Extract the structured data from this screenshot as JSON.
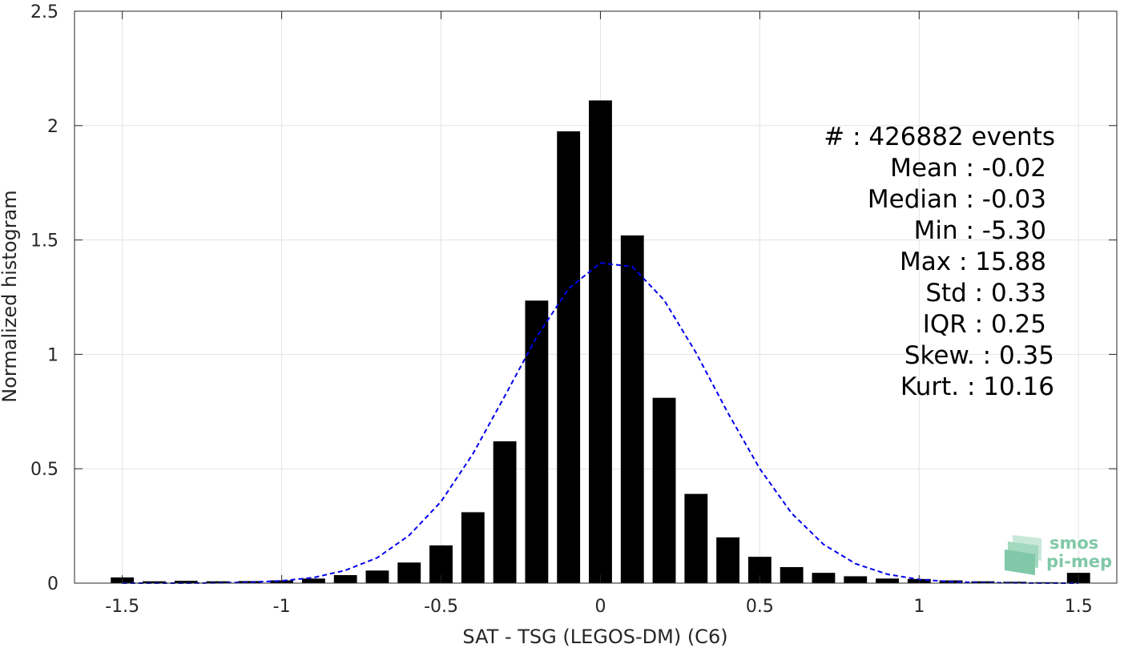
{
  "chart_data": {
    "type": "bar",
    "xlabel": "SAT - TSG (LEGOS-DM) (C6)",
    "ylabel": "Normalized histogram",
    "xlim": [
      -1.5,
      1.5
    ],
    "ylim": [
      0,
      2.5
    ],
    "grid": true,
    "x_ticks": [
      -1.5,
      -1,
      -0.5,
      0,
      0.5,
      1,
      1.5
    ],
    "x_tick_labels": [
      "-1.5",
      "-1",
      "-0.5",
      "0",
      "0.5",
      "1",
      "1.5"
    ],
    "y_ticks": [
      0,
      0.5,
      1,
      1.5,
      2,
      2.5
    ],
    "y_tick_labels": [
      "0",
      "0.5",
      "1",
      "1.5",
      "2",
      "2.5"
    ],
    "bar_color": "#000000",
    "bins": [
      -1.5,
      -1.4,
      -1.3,
      -1.2,
      -1.1,
      -1.0,
      -0.9,
      -0.8,
      -0.7,
      -0.6,
      -0.5,
      -0.4,
      -0.3,
      -0.2,
      -0.1,
      0.0,
      0.1,
      0.2,
      0.3,
      0.4,
      0.5,
      0.6,
      0.7,
      0.8,
      0.9,
      1.0,
      1.1,
      1.2,
      1.3,
      1.4,
      1.5
    ],
    "values": [
      0.025,
      0.008,
      0.01,
      0.008,
      0.009,
      0.012,
      0.02,
      0.035,
      0.055,
      0.09,
      0.165,
      0.31,
      0.62,
      1.235,
      1.975,
      2.11,
      1.52,
      0.81,
      0.39,
      0.2,
      0.115,
      0.07,
      0.045,
      0.03,
      0.02,
      0.018,
      0.012,
      0.008,
      0.006,
      0.004,
      0.045
    ],
    "fit_curve": {
      "style": "dashed",
      "color": "#0000ee",
      "x": [
        -1.5,
        -1.4,
        -1.3,
        -1.2,
        -1.1,
        -1.0,
        -0.9,
        -0.8,
        -0.7,
        -0.6,
        -0.5,
        -0.4,
        -0.3,
        -0.2,
        -0.1,
        0.0,
        0.1,
        0.2,
        0.3,
        0.4,
        0.5,
        0.6,
        0.7,
        0.8,
        0.9,
        1.0,
        1.1,
        1.2,
        1.3,
        1.4,
        1.5
      ],
      "y": [
        0.0,
        0.0,
        0.0,
        0.001,
        0.004,
        0.01,
        0.024,
        0.056,
        0.111,
        0.209,
        0.356,
        0.565,
        0.818,
        1.076,
        1.287,
        1.4,
        1.383,
        1.237,
        1.007,
        0.744,
        0.5,
        0.305,
        0.169,
        0.085,
        0.039,
        0.016,
        0.006,
        0.002,
        0.001,
        0.0,
        0.0
      ]
    }
  },
  "stats": {
    "events": "#   : 426882 events",
    "mean": "Mean : -0.02",
    "median": "Median : -0.03",
    "min": "Min : -5.30",
    "max": "Max : 15.88",
    "std": "Std : 0.33",
    "iqr": "IQR : 0.25",
    "skew": "Skew. : 0.35",
    "kurt": "Kurt. : 10.16"
  },
  "logo": {
    "line1": "smos",
    "line2": "pi-mep",
    "color": "#6abf9a"
  }
}
